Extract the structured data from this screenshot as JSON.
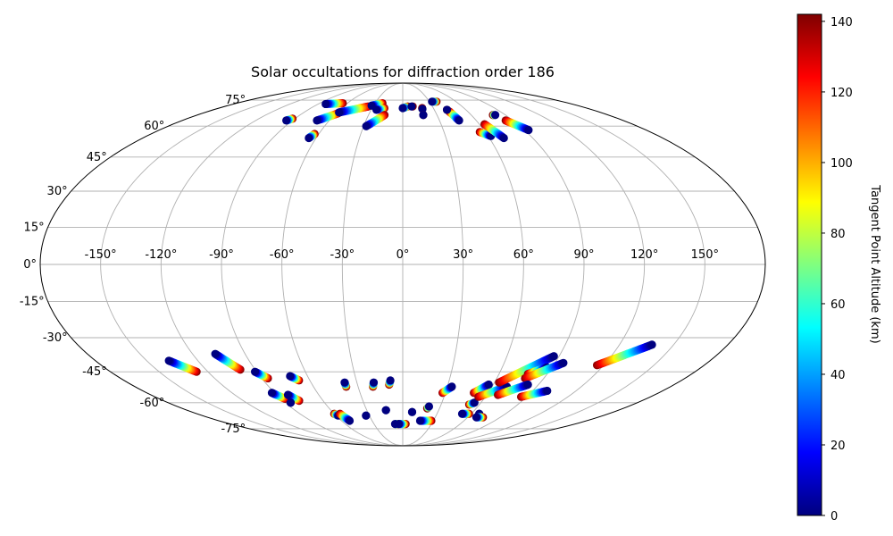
{
  "chart_data": {
    "type": "scatter",
    "projection": "mollweide",
    "title": "Solar occultations for diffraction order 186",
    "xlabel": "",
    "ylabel": "",
    "xlim": [
      -180,
      180
    ],
    "ylim": [
      -90,
      90
    ],
    "grid": true,
    "lon_ticks": [
      -150,
      -120,
      -90,
      -60,
      -30,
      0,
      30,
      60,
      90,
      120,
      150
    ],
    "lon_tick_labels": [
      "-150°",
      "-120°",
      "-90°",
      "-60°",
      "-30°",
      "0°",
      "30°",
      "60°",
      "90°",
      "120°",
      "150°"
    ],
    "lat_ticks": [
      75,
      60,
      45,
      30,
      15,
      0,
      -15,
      -30,
      -45,
      -60,
      -75
    ],
    "lat_tick_labels": [
      "75°",
      "60°",
      "45°",
      "30°",
      "15°",
      "0°",
      "-15°",
      "-30°",
      "-45°",
      "-60°",
      "-75°"
    ],
    "colorbar": {
      "label": "Tangent Point Altitude (km)",
      "colormap": "jet",
      "range": [
        0,
        142
      ],
      "ticks": [
        0,
        20,
        40,
        60,
        80,
        100,
        120,
        140
      ],
      "tick_labels": [
        "0",
        "20",
        "40",
        "60",
        "80",
        "100",
        "120",
        "140"
      ],
      "position": "right"
    },
    "series": [
      {
        "values": [
          {
            "lon": -65,
            "lat": 73,
            "alt": 140
          },
          {
            "lon": -82,
            "lat": 72.5,
            "alt": 0
          }
        ]
      },
      {
        "values": [
          {
            "lon": -58,
            "lat": 67,
            "alt": 140
          },
          {
            "lon": -70,
            "lat": 63,
            "alt": 0
          }
        ]
      },
      {
        "values": [
          {
            "lon": -63,
            "lat": 56,
            "alt": 140
          },
          {
            "lon": -65,
            "lat": 54,
            "alt": 0
          }
        ]
      },
      {
        "values": [
          {
            "lon": -35,
            "lat": 71,
            "alt": 140
          },
          {
            "lon": -58,
            "lat": 67.5,
            "alt": 0
          }
        ]
      },
      {
        "values": [
          {
            "lon": -22,
            "lat": 73,
            "alt": 140
          },
          {
            "lon": -32,
            "lat": 71.5,
            "alt": 0
          }
        ]
      },
      {
        "values": [
          {
            "lon": -18,
            "lat": 70,
            "alt": 140
          },
          {
            "lon": -25,
            "lat": 69,
            "alt": 0
          }
        ]
      },
      {
        "values": [
          {
            "lon": -16,
            "lat": 66,
            "alt": 140
          },
          {
            "lon": -28,
            "lat": 60,
            "alt": 0
          }
        ]
      },
      {
        "values": [
          {
            "lon": -92,
            "lat": 64,
            "alt": 140
          },
          {
            "lon": -95,
            "lat": 63,
            "alt": 0
          }
        ]
      },
      {
        "values": [
          {
            "lon": 5,
            "lat": 71,
            "alt": 140
          },
          {
            "lon": 0,
            "lat": 70,
            "alt": 0
          }
        ]
      },
      {
        "values": [
          {
            "lon": 10,
            "lat": 71,
            "alt": 140
          },
          {
            "lon": 9,
            "lat": 71,
            "alt": 0
          }
        ]
      },
      {
        "values": [
          {
            "lon": 19,
            "lat": 70,
            "alt": 140
          },
          {
            "lon": 19,
            "lat": 69.5,
            "alt": 0
          }
        ]
      },
      {
        "values": [
          {
            "lon": 18,
            "lat": 66,
            "alt": 140
          },
          {
            "lon": 18,
            "lat": 66,
            "alt": 0
          }
        ]
      },
      {
        "values": [
          {
            "lon": 38,
            "lat": 74,
            "alt": 140
          },
          {
            "lon": 33,
            "lat": 74,
            "alt": 0
          }
        ]
      },
      {
        "values": [
          {
            "lon": 43,
            "lat": 68,
            "alt": 140
          },
          {
            "lon": 46,
            "lat": 63,
            "alt": 0
          }
        ]
      },
      {
        "values": [
          {
            "lon": 42,
            "lat": 69,
            "alt": 140
          },
          {
            "lon": 42,
            "lat": 69,
            "alt": 0
          }
        ]
      },
      {
        "values": [
          {
            "lon": 56,
            "lat": 57,
            "alt": 140
          },
          {
            "lon": 62,
            "lat": 55,
            "alt": 0
          }
        ]
      },
      {
        "values": [
          {
            "lon": 64,
            "lat": 61,
            "alt": 140
          },
          {
            "lon": 70,
            "lat": 54,
            "alt": 0
          }
        ]
      },
      {
        "values": [
          {
            "lon": 79,
            "lat": 66,
            "alt": 140
          },
          {
            "lon": 81,
            "lat": 66,
            "alt": 0
          }
        ]
      },
      {
        "values": [
          {
            "lon": 84,
            "lat": 63,
            "alt": 140
          },
          {
            "lon": 93,
            "lat": 58,
            "alt": 0
          }
        ]
      },
      {
        "values": [
          {
            "lon": -127,
            "lat": -45,
            "alt": 140
          },
          {
            "lon": -137,
            "lat": -40,
            "alt": 0
          }
        ]
      },
      {
        "values": [
          {
            "lon": -99,
            "lat": -44,
            "alt": 140
          },
          {
            "lon": -107,
            "lat": -37,
            "alt": 0
          }
        ]
      },
      {
        "values": [
          {
            "lon": -86,
            "lat": -48,
            "alt": 140
          },
          {
            "lon": -91,
            "lat": -45,
            "alt": 0
          }
        ]
      },
      {
        "values": [
          {
            "lon": -67,
            "lat": -49,
            "alt": 140
          },
          {
            "lon": -71,
            "lat": -47,
            "alt": 0
          }
        ]
      },
      {
        "values": [
          {
            "lon": -87,
            "lat": -58,
            "alt": 140
          },
          {
            "lon": -92,
            "lat": -55,
            "alt": 0
          }
        ]
      },
      {
        "values": [
          {
            "lon": -78,
            "lat": -59,
            "alt": 140
          },
          {
            "lon": -82,
            "lat": -56,
            "alt": 0
          }
        ]
      },
      {
        "values": [
          {
            "lon": -86,
            "lat": -60,
            "alt": 0
          },
          {
            "lon": -86,
            "lat": -60,
            "alt": 0
          }
        ]
      },
      {
        "values": [
          {
            "lon": -60,
            "lat": -66,
            "alt": 140
          },
          {
            "lon": -58,
            "lat": -67,
            "alt": 0
          }
        ]
      },
      {
        "values": [
          {
            "lon": -55,
            "lat": -66,
            "alt": 140
          },
          {
            "lon": -52,
            "lat": -70,
            "alt": 0
          }
        ]
      },
      {
        "values": [
          {
            "lon": -38,
            "lat": -52,
            "alt": 140
          },
          {
            "lon": -38,
            "lat": -50,
            "alt": 0
          }
        ]
      },
      {
        "values": [
          {
            "lon": -33,
            "lat": -67,
            "alt": 0
          },
          {
            "lon": -33,
            "lat": -67,
            "alt": 0
          }
        ]
      },
      {
        "values": [
          {
            "lon": -20,
            "lat": -52,
            "alt": 140
          },
          {
            "lon": -19,
            "lat": -50,
            "alt": 0
          }
        ]
      },
      {
        "values": [
          {
            "lon": -9,
            "lat": -51,
            "alt": 140
          },
          {
            "lon": -8,
            "lat": -49,
            "alt": 0
          }
        ]
      },
      {
        "values": [
          {
            "lon": -14,
            "lat": -64,
            "alt": 0
          },
          {
            "lon": -14,
            "lat": -64,
            "alt": 0
          }
        ]
      },
      {
        "values": [
          {
            "lon": -5,
            "lat": -72,
            "alt": 140
          },
          {
            "lon": -8,
            "lat": -72,
            "alt": 0
          }
        ]
      },
      {
        "values": [
          {
            "lon": 3,
            "lat": -72,
            "alt": 140
          },
          {
            "lon": -4,
            "lat": -72,
            "alt": 0
          }
        ]
      },
      {
        "values": [
          {
            "lon": 8,
            "lat": -65,
            "alt": 0
          },
          {
            "lon": 8,
            "lat": -65,
            "alt": 0
          }
        ]
      },
      {
        "values": [
          {
            "lon": 20,
            "lat": -63,
            "alt": 140
          },
          {
            "lon": 21,
            "lat": -62,
            "alt": 0
          }
        ]
      },
      {
        "values": [
          {
            "lon": 28,
            "lat": -70,
            "alt": 140
          },
          {
            "lon": 17,
            "lat": -70,
            "alt": 0
          }
        ]
      },
      {
        "values": [
          {
            "lon": 28,
            "lat": -55,
            "alt": 140
          },
          {
            "lon": 33,
            "lat": -52,
            "alt": 0
          }
        ]
      },
      {
        "values": [
          {
            "lon": 50,
            "lat": -55,
            "alt": 140
          },
          {
            "lon": 57,
            "lat": -51,
            "alt": 0
          }
        ]
      },
      {
        "values": [
          {
            "lon": 52,
            "lat": -61,
            "alt": 140
          },
          {
            "lon": 55,
            "lat": -60,
            "alt": 0
          }
        ]
      },
      {
        "values": [
          {
            "lon": 58,
            "lat": -66,
            "alt": 140
          },
          {
            "lon": 52,
            "lat": -66,
            "alt": 0
          }
        ]
      },
      {
        "values": [
          {
            "lon": 55,
            "lat": -57,
            "alt": 140
          },
          {
            "lon": 70,
            "lat": -52,
            "alt": 0
          }
        ]
      },
      {
        "values": [
          {
            "lon": 63,
            "lat": -50,
            "alt": 140
          },
          {
            "lon": 87,
            "lat": -38,
            "alt": 0
          }
        ]
      },
      {
        "values": [
          {
            "lon": 78,
            "lat": -46,
            "alt": 140
          },
          {
            "lon": 87,
            "lat": -43,
            "alt": 0
          }
        ]
      },
      {
        "values": [
          {
            "lon": 78,
            "lat": -48,
            "alt": 140
          },
          {
            "lon": 95,
            "lat": -41,
            "alt": 0
          }
        ]
      },
      {
        "values": [
          {
            "lon": 68,
            "lat": -56,
            "alt": 140
          },
          {
            "lon": 83,
            "lat": -51,
            "alt": 0
          }
        ]
      },
      {
        "values": [
          {
            "lon": 67,
            "lat": -66,
            "alt": 0
          },
          {
            "lon": 67,
            "lat": -66,
            "alt": 0
          }
        ]
      },
      {
        "values": [
          {
            "lon": 74,
            "lat": -68,
            "alt": 140
          },
          {
            "lon": 68,
            "lat": -68,
            "alt": 0
          }
        ]
      },
      {
        "values": [
          {
            "lon": 86,
            "lat": -57,
            "alt": 140
          },
          {
            "lon": 100,
            "lat": -54,
            "alt": 0
          }
        ]
      },
      {
        "values": [
          {
            "lon": 116,
            "lat": -42,
            "alt": 140
          },
          {
            "lon": 138,
            "lat": -33,
            "alt": 0
          }
        ]
      }
    ]
  }
}
